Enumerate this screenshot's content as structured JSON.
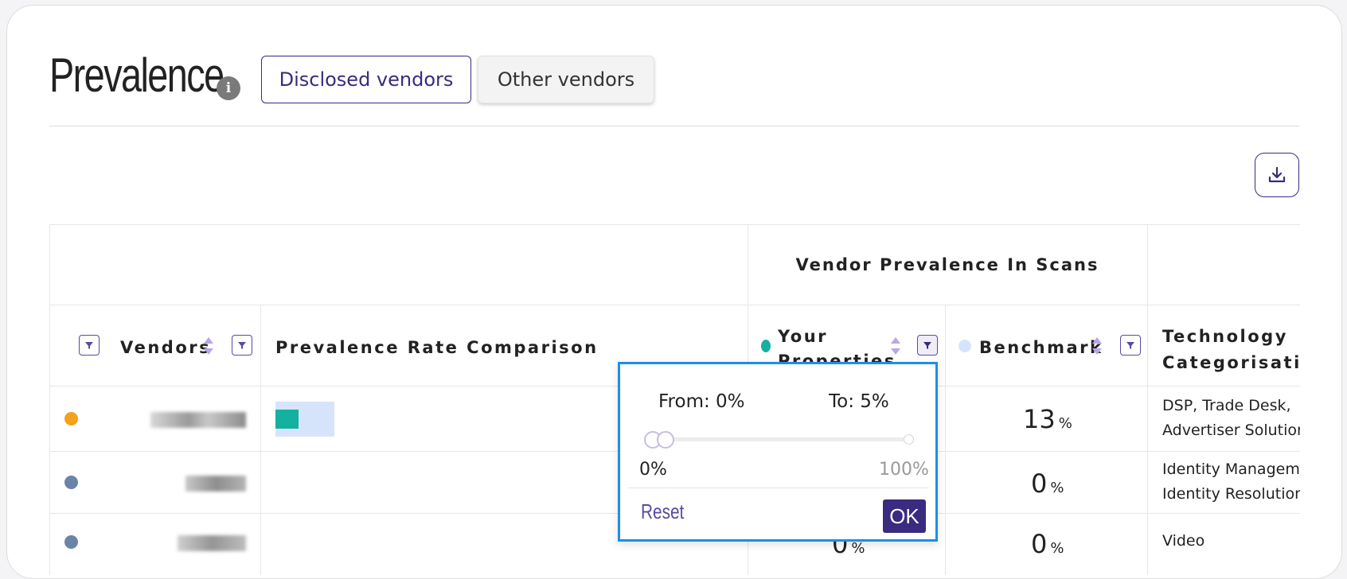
{
  "header": {
    "title": "Prevalence",
    "info_icon": "i",
    "tabs": [
      {
        "label": "Disclosed vendors",
        "active": true
      },
      {
        "label": "Other vendors",
        "active": false
      }
    ]
  },
  "table": {
    "group_header": "Vendor Prevalence In Scans",
    "columns": {
      "vendors": "Vendors",
      "comparison": "Prevalence Rate Comparison",
      "your_properties": "Your Properties",
      "benchmark": "Benchmark",
      "technology": "Technology Categorisation"
    },
    "rows": [
      {
        "dot_color": "#f4a11c",
        "benchmark": "13",
        "benchmark_unit": "%",
        "your_properties": "",
        "category_lines": [
          "DSP, Trade Desk,",
          "Advertiser Solution"
        ]
      },
      {
        "dot_color": "#6a84a8",
        "benchmark": "0",
        "benchmark_unit": "%",
        "your_properties": "",
        "category_lines": [
          "Identity Manageme",
          "Identity Resolution"
        ]
      },
      {
        "dot_color": "#6a84a8",
        "benchmark": "0",
        "benchmark_unit": "%",
        "your_properties": "0",
        "your_properties_unit": "%",
        "category_lines": [
          "Video"
        ]
      }
    ]
  },
  "popup": {
    "from": "From: 0%",
    "to": "To: 5%",
    "min_label": "0%",
    "max_label": "100%",
    "range_from": 0,
    "range_to": 5,
    "reset_label": "Reset",
    "ok_label": "OK"
  },
  "colors": {
    "accent": "#3a2a80",
    "your_properties": "#14b0a0",
    "benchmark": "#d6e4fb",
    "popup_border": "#1e8ee8"
  },
  "icons": {
    "download": "download-icon",
    "filter": "filter-icon",
    "sort": "sort-icon",
    "info": "info-icon"
  }
}
